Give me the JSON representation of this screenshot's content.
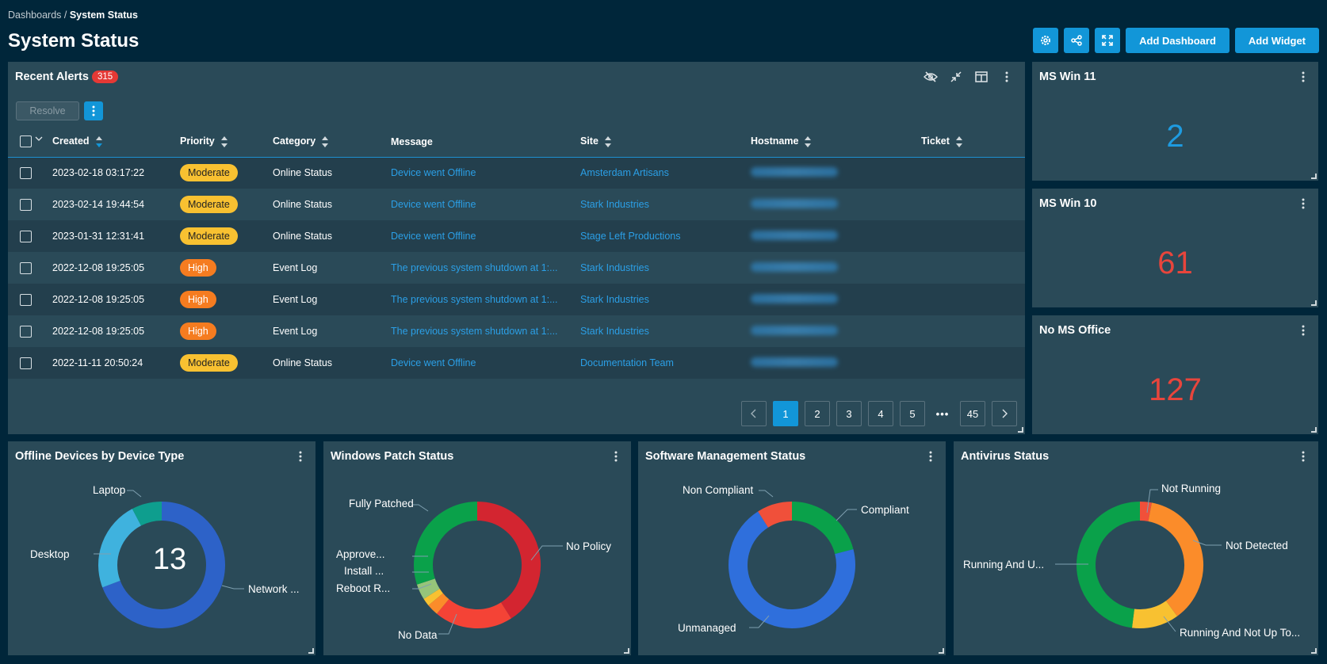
{
  "breadcrumb": {
    "parent": "Dashboards",
    "sep": " / ",
    "current": "System Status"
  },
  "page_title": "System Status",
  "toolbar": {
    "add_dashboard": "Add Dashboard",
    "add_widget": "Add Widget"
  },
  "alerts": {
    "title": "Recent Alerts",
    "count": "315",
    "resolve_label": "Resolve",
    "columns": {
      "created": "Created",
      "priority": "Priority",
      "category": "Category",
      "message": "Message",
      "site": "Site",
      "hostname": "Hostname",
      "ticket": "Ticket"
    },
    "rows": [
      {
        "created": "2023-02-18 03:17:22",
        "priority": "Moderate",
        "category": "Online Status",
        "message": "Device went Offline",
        "site": "Amsterdam Artisans"
      },
      {
        "created": "2023-02-14 19:44:54",
        "priority": "Moderate",
        "category": "Online Status",
        "message": "Device went Offline",
        "site": "Stark Industries"
      },
      {
        "created": "2023-01-31 12:31:41",
        "priority": "Moderate",
        "category": "Online Status",
        "message": "Device went Offline",
        "site": "Stage Left Productions"
      },
      {
        "created": "2022-12-08 19:25:05",
        "priority": "High",
        "category": "Event Log",
        "message": "The previous system shutdown at 1:...",
        "site": "Stark Industries"
      },
      {
        "created": "2022-12-08 19:25:05",
        "priority": "High",
        "category": "Event Log",
        "message": "The previous system shutdown at 1:...",
        "site": "Stark Industries"
      },
      {
        "created": "2022-12-08 19:25:05",
        "priority": "High",
        "category": "Event Log",
        "message": "The previous system shutdown at 1:...",
        "site": "Stark Industries"
      },
      {
        "created": "2022-11-11 20:50:24",
        "priority": "Moderate",
        "category": "Online Status",
        "message": "Device went Offline",
        "site": "Documentation Team"
      }
    ],
    "pagination": {
      "pages": [
        "1",
        "2",
        "3",
        "4",
        "5"
      ],
      "dots": "•••",
      "last": "45",
      "current": "1"
    }
  },
  "stats": [
    {
      "title": "MS Win 11",
      "value": "2",
      "color": "#1e9be0"
    },
    {
      "title": "MS Win 10",
      "value": "61",
      "color": "#e8453c"
    },
    {
      "title": "No MS Office",
      "value": "127",
      "color": "#e8453c"
    }
  ],
  "charts": {
    "offline": {
      "title": "Offline Devices by Device Type",
      "center": "13",
      "labels": {
        "laptop": "Laptop",
        "desktop": "Desktop",
        "network": "Network ..."
      }
    },
    "patch": {
      "title": "Windows Patch Status",
      "labels": {
        "fully": "Fully Patched",
        "nopolicy": "No Policy",
        "approve": "Approve...",
        "install": "Install ...",
        "reboot": "Reboot R...",
        "nodata": "No Data"
      }
    },
    "software": {
      "title": "Software Management Status",
      "labels": {
        "noncompliant": "Non Compliant",
        "compliant": "Compliant",
        "unmanaged": "Unmanaged"
      }
    },
    "antivirus": {
      "title": "Antivirus Status",
      "labels": {
        "notrunning": "Not Running",
        "notdetected": "Not Detected",
        "running": "Running And U...",
        "notuptodate": "Running And Not Up To..."
      }
    }
  },
  "chart_data": [
    {
      "type": "pie",
      "title": "Offline Devices by Device Type",
      "categories": [
        "Network ...",
        "Desktop",
        "Laptop"
      ],
      "values": [
        9,
        3,
        1
      ],
      "colors": [
        "#2d62c8",
        "#3fb2de",
        "#0e9e8e"
      ]
    },
    {
      "type": "pie",
      "title": "Windows Patch Status",
      "categories": [
        "No Policy",
        "No Data",
        "Reboot R...",
        "Install ...",
        "Approve...",
        "Fully Patched"
      ],
      "values": [
        41,
        20,
        3,
        2,
        4,
        30
      ],
      "colors": [
        "#d32530",
        "#f44336",
        "#fb8c2a",
        "#f8c131",
        "#96c47a",
        "#0aa14a"
      ]
    },
    {
      "type": "pie",
      "title": "Software Management Status",
      "categories": [
        "Compliant",
        "Unmanaged",
        "Non Compliant"
      ],
      "values": [
        21,
        70,
        9
      ],
      "colors": [
        "#0aa14a",
        "#2f6fdc",
        "#f0503a"
      ]
    },
    {
      "type": "pie",
      "title": "Antivirus Status",
      "categories": [
        "Not Running",
        "Not Detected",
        "Running And Not Up To...",
        "Running And U..."
      ],
      "values": [
        3,
        37,
        12,
        48
      ],
      "colors": [
        "#f0503a",
        "#fb8c2a",
        "#f8c131",
        "#0aa14a"
      ]
    }
  ]
}
